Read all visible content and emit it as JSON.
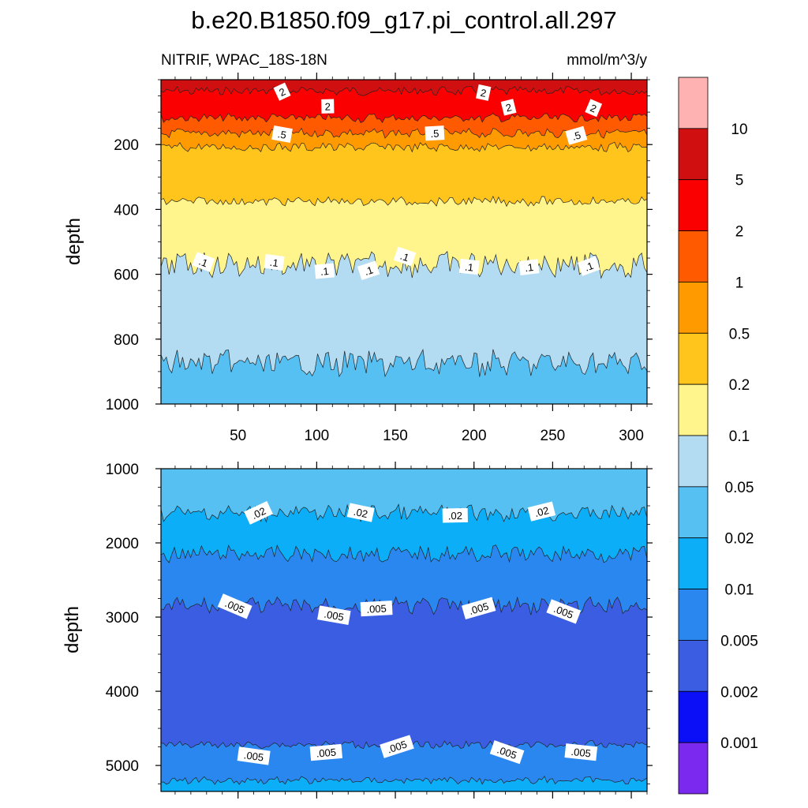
{
  "figure": {
    "title": "b.e20.B1850.f09_g17.pi_control.all.297",
    "subtitle_left": "NITRIF, WPAC_18S-18N",
    "subtitle_right": "mmol/m^3/y"
  },
  "colorbar": {
    "colors": [
      "#ffb2b2",
      "#d01010",
      "#fa0000",
      "#ff5a00",
      "#ff9a00",
      "#ffc51c",
      "#fff58c",
      "#b3dcf2",
      "#56c0f2",
      "#0caff7",
      "#2b87f0",
      "#3b5de1",
      "#0a0ff8",
      "#7b28ef"
    ],
    "labels": [
      "10",
      "5",
      "2",
      "1",
      "0.5",
      "0.2",
      "0.1",
      "0.05",
      "0.02",
      "0.01",
      "0.005",
      "0.002",
      "0.001"
    ]
  },
  "chart_data": [
    {
      "type": "heatmap",
      "panel": "upper",
      "xlabel": "",
      "ylabel": "depth",
      "xlim": [
        1,
        310
      ],
      "ylim": [
        1000,
        0
      ],
      "x_ticks": [
        "50",
        "100",
        "150",
        "200",
        "250",
        "300"
      ],
      "y_ticks": [
        "200",
        "400",
        "600",
        "800",
        "1000"
      ],
      "contour_boundaries_depth": [
        {
          "level": 5,
          "depth": 35
        },
        {
          "level": 2,
          "depth": 118
        },
        {
          "level": 1,
          "depth": 165
        },
        {
          "level": 0.5,
          "depth": 208
        },
        {
          "level": 0.2,
          "depth": 375
        },
        {
          "level": 0.1,
          "depth": 570
        },
        {
          "level": 0.05,
          "depth": 875
        }
      ],
      "contour_labels": [
        {
          "text": "2",
          "x": 78,
          "depth": 37
        },
        {
          "text": "2",
          "x": 206,
          "depth": 40
        },
        {
          "text": "2",
          "x": 107,
          "depth": 82
        },
        {
          "text": "2",
          "x": 222,
          "depth": 85
        },
        {
          "text": "2",
          "x": 276,
          "depth": 87
        },
        {
          "text": ".5",
          "x": 78,
          "depth": 168
        },
        {
          "text": ".5",
          "x": 175,
          "depth": 165
        },
        {
          "text": ".5",
          "x": 265,
          "depth": 172
        },
        {
          "text": ".1",
          "x": 28,
          "depth": 562
        },
        {
          "text": ".1",
          "x": 73,
          "depth": 563
        },
        {
          "text": ".1",
          "x": 105,
          "depth": 590
        },
        {
          "text": ".1",
          "x": 133,
          "depth": 588
        },
        {
          "text": ".1",
          "x": 156,
          "depth": 545
        },
        {
          "text": ".1",
          "x": 197,
          "depth": 577
        },
        {
          "text": ".1",
          "x": 235,
          "depth": 578
        },
        {
          "text": ".1",
          "x": 273,
          "depth": 575
        }
      ]
    },
    {
      "type": "heatmap",
      "panel": "lower",
      "xlabel": "",
      "ylabel": "depth",
      "xlim": [
        1,
        310
      ],
      "ylim": [
        5350,
        1000
      ],
      "y_ticks": [
        "1000",
        "2000",
        "3000",
        "4000",
        "5000"
      ],
      "contour_boundaries_depth": [
        {
          "level": 0.02,
          "depth": 1600
        },
        {
          "level": 0.01,
          "depth": 2150
        },
        {
          "level": 0.005,
          "depth": 2850
        },
        {
          "level": 0.002,
          "depth": 4720
        },
        {
          "level": 0.005,
          "depth": 5200
        }
      ],
      "contour_labels": [
        {
          "text": ".02",
          "x": 63,
          "depth": 1595
        },
        {
          "text": ".02",
          "x": 128,
          "depth": 1590
        },
        {
          "text": ".02",
          "x": 188,
          "depth": 1630
        },
        {
          "text": ".02",
          "x": 243,
          "depth": 1575
        },
        {
          "text": ".005",
          "x": 48,
          "depth": 2855
        },
        {
          "text": ".005",
          "x": 111,
          "depth": 2975
        },
        {
          "text": ".005",
          "x": 138,
          "depth": 2885
        },
        {
          "text": ".005",
          "x": 203,
          "depth": 2880
        },
        {
          "text": ".005",
          "x": 257,
          "depth": 2925
        },
        {
          "text": ".005",
          "x": 60,
          "depth": 4870
        },
        {
          "text": ".005",
          "x": 106,
          "depth": 4825
        },
        {
          "text": ".005",
          "x": 151,
          "depth": 4745
        },
        {
          "text": ".005",
          "x": 221,
          "depth": 4820
        },
        {
          "text": ".005",
          "x": 268,
          "depth": 4820
        }
      ]
    }
  ]
}
